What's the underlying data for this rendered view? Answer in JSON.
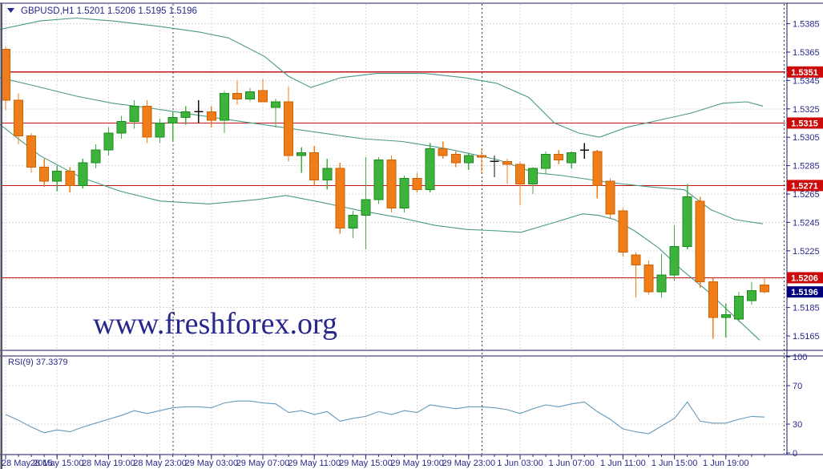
{
  "header": {
    "text": "GBPUSD,H1  1.5201 1.5206 1.5195 1.5196",
    "symbol": "GBPUSD",
    "timeframe": "H1"
  },
  "watermark": "www.freshforex.org",
  "colors": {
    "up": "#3cb43c",
    "up_stroke": "#1f8a1f",
    "down": "#f07d1a",
    "down_stroke": "#c66408",
    "band": "#4a9a88",
    "red_line": "#c41414",
    "badge_red": "#cc0a0a",
    "badge_blue": "#00007f",
    "axis_text": "#28288c",
    "grid": "#d8d8d8",
    "separator": "#3a3a3a",
    "border": "#1b1b66",
    "rsi_line": "#6699bb",
    "doji": "#111111",
    "watermark_green": "#33a053"
  },
  "price_axis": {
    "labels": [
      "1.5385",
      "1.5365",
      "1.5345",
      "1.5325",
      "1.5305",
      "1.5285",
      "1.5265",
      "1.5245",
      "1.5225",
      "1.5185",
      "1.5165"
    ],
    "badges": [
      {
        "value": "1.5351",
        "type": "line"
      },
      {
        "value": "1.5315",
        "type": "line"
      },
      {
        "value": "1.5271",
        "type": "line"
      },
      {
        "value": "1.5206",
        "type": "line"
      },
      {
        "value": "1.5196",
        "type": "bid"
      }
    ]
  },
  "rsi_axis_labels": [
    "100",
    "70",
    "30",
    "0"
  ],
  "time_axis_labels": [
    "28 May 2015",
    "28 May 15:00",
    "28 May 19:00",
    "28 May 23:00",
    "29 May 03:00",
    "29 May 07:00",
    "29 May 11:00",
    "29 May 15:00",
    "29 May 19:00",
    "29 May 23:00",
    "1 Jun 03:00",
    "1 Jun 07:00",
    "1 Jun 11:00",
    "1 Jun 15:00",
    "1 Jun 19:00"
  ],
  "chart_data": {
    "type": "candlestick",
    "symbol": "GBPUSD",
    "timeframe": "H1",
    "current_bar": {
      "open": 1.5201,
      "high": 1.5206,
      "low": 1.5195,
      "close": 1.5196
    },
    "horizontal_lines": [
      1.5351,
      1.5315,
      1.5271,
      1.5206
    ],
    "bid_price": 1.5196,
    "price_range": [
      1.5165,
      1.5385
    ],
    "candles": [
      [
        "28 May 11:00",
        1.5367,
        1.5369,
        1.5324,
        1.5331
      ],
      [
        "28 May 12:00",
        1.5331,
        1.5336,
        1.53,
        1.5306
      ],
      [
        "28 May 13:00",
        1.5306,
        1.5308,
        1.528,
        1.5284
      ],
      [
        "28 May 14:00",
        1.5284,
        1.529,
        1.527,
        1.5274
      ],
      [
        "28 May 15:00",
        1.5274,
        1.5285,
        1.5267,
        1.5281
      ],
      [
        "28 May 16:00",
        1.5281,
        1.5284,
        1.5266,
        1.5271
      ],
      [
        "28 May 17:00",
        1.5271,
        1.529,
        1.5269,
        1.5287
      ],
      [
        "28 May 18:00",
        1.5287,
        1.53,
        1.5283,
        1.5296
      ],
      [
        "28 May 19:00",
        1.5296,
        1.5312,
        1.5292,
        1.5308
      ],
      [
        "28 May 20:00",
        1.5308,
        1.532,
        1.5304,
        1.5316
      ],
      [
        "28 May 21:00",
        1.5316,
        1.5331,
        1.5311,
        1.5327
      ],
      [
        "28 May 22:00",
        1.5327,
        1.5331,
        1.5301,
        1.5305
      ],
      [
        "28 May 23:00",
        1.5305,
        1.5318,
        1.5301,
        1.5315
      ],
      [
        "29 May 00:00",
        1.5315,
        1.5323,
        1.5302,
        1.5319
      ],
      [
        "29 May 01:00",
        1.5319,
        1.5327,
        1.5314,
        1.5323
      ],
      [
        "29 May 02:00",
        1.5323,
        1.5331,
        1.5315,
        1.5323
      ],
      [
        "29 May 03:00",
        1.5323,
        1.5327,
        1.5312,
        1.5317
      ],
      [
        "29 May 04:00",
        1.5317,
        1.5338,
        1.5308,
        1.5336
      ],
      [
        "29 May 05:00",
        1.5336,
        1.5345,
        1.5328,
        1.5332
      ],
      [
        "29 May 06:00",
        1.5332,
        1.534,
        1.533,
        1.5337
      ],
      [
        "29 May 07:00",
        1.5338,
        1.5346,
        1.533,
        1.533
      ],
      [
        "29 May 08:00",
        1.5326,
        1.5332,
        1.5312,
        1.533
      ],
      [
        "29 May 09:00",
        1.533,
        1.5341,
        1.5288,
        1.5292
      ],
      [
        "29 May 10:00",
        1.5292,
        1.5298,
        1.528,
        1.5294
      ],
      [
        "29 May 11:00",
        1.5294,
        1.5299,
        1.5271,
        1.5275
      ],
      [
        "29 May 12:00",
        1.5275,
        1.529,
        1.5268,
        1.5283
      ],
      [
        "29 May 13:00",
        1.5283,
        1.5287,
        1.5237,
        1.5241
      ],
      [
        "29 May 14:00",
        1.5241,
        1.5253,
        1.5234,
        1.525
      ],
      [
        "29 May 15:00",
        1.525,
        1.5291,
        1.5226,
        1.5261
      ],
      [
        "29 May 16:00",
        1.5261,
        1.5291,
        1.5258,
        1.5289
      ],
      [
        "29 May 17:00",
        1.5289,
        1.5292,
        1.5252,
        1.5255
      ],
      [
        "29 May 18:00",
        1.5255,
        1.5278,
        1.5252,
        1.5276
      ],
      [
        "29 May 19:00",
        1.5276,
        1.528,
        1.5266,
        1.5268
      ],
      [
        "29 May 20:00",
        1.5268,
        1.5301,
        1.5266,
        1.5297
      ],
      [
        "29 May 21:00",
        1.5297,
        1.5302,
        1.529,
        1.5292
      ],
      [
        "29 May 22:00",
        1.5293,
        1.5295,
        1.5284,
        1.5287
      ],
      [
        "29 May 23:00",
        1.5287,
        1.5294,
        1.5282,
        1.5292
      ],
      [
        "1 Jun 00:00",
        1.5292,
        1.5297,
        1.5279,
        1.5291
      ],
      [
        "1 Jun 01:00",
        1.5288,
        1.5292,
        1.5277,
        1.5288
      ],
      [
        "1 Jun 02:00",
        1.5288,
        1.529,
        1.5272,
        1.5286
      ],
      [
        "1 Jun 03:00",
        1.5286,
        1.5288,
        1.5257,
        1.5272
      ],
      [
        "1 Jun 04:00",
        1.5272,
        1.5284,
        1.5265,
        1.5283
      ],
      [
        "1 Jun 05:00",
        1.5283,
        1.5295,
        1.5279,
        1.5293
      ],
      [
        "1 Jun 06:00",
        1.5293,
        1.5296,
        1.5286,
        1.5289
      ],
      [
        "1 Jun 07:00",
        1.5287,
        1.5295,
        1.5283,
        1.5294
      ],
      [
        "1 Jun 08:00",
        1.5296,
        1.5301,
        1.529,
        1.5296
      ],
      [
        "1 Jun 09:00",
        1.5295,
        1.5296,
        1.5262,
        1.5271
      ],
      [
        "1 Jun 10:00",
        1.5274,
        1.5276,
        1.5248,
        1.5251
      ],
      [
        "1 Jun 11:00",
        1.5253,
        1.5255,
        1.5221,
        1.5224
      ],
      [
        "1 Jun 12:00",
        1.5222,
        1.5224,
        1.5192,
        1.5215
      ],
      [
        "1 Jun 13:00",
        1.5215,
        1.5218,
        1.5194,
        1.5196
      ],
      [
        "1 Jun 14:00",
        1.5196,
        1.5223,
        1.5192,
        1.5208
      ],
      [
        "1 Jun 15:00",
        1.5208,
        1.5243,
        1.5204,
        1.5228
      ],
      [
        "1 Jun 16:00",
        1.5228,
        1.5272,
        1.5226,
        1.5263
      ],
      [
        "1 Jun 17:00",
        1.526,
        1.5263,
        1.5199,
        1.5203
      ],
      [
        "1 Jun 18:00",
        1.5203,
        1.5206,
        1.5163,
        1.5178
      ],
      [
        "1 Jun 19:00",
        1.5178,
        1.5188,
        1.5164,
        1.518
      ],
      [
        "1 Jun 20:00",
        1.5177,
        1.5196,
        1.5175,
        1.5193
      ],
      [
        "1 Jun 21:00",
        1.519,
        1.5203,
        1.5187,
        1.5197
      ],
      [
        "1 Jun 22:00",
        1.5201,
        1.5206,
        1.5195,
        1.5196
      ]
    ],
    "doji_black_indices": [
      15,
      38,
      45
    ],
    "bollinger": {
      "period_note": "Bollinger Bands overlay, teal",
      "upper": [
        [
          0,
          1.5381
        ],
        [
          50,
          1.5387
        ],
        [
          95,
          1.5389
        ],
        [
          140,
          1.5387
        ],
        [
          200,
          1.5383
        ],
        [
          250,
          1.5379
        ],
        [
          285,
          1.5375
        ],
        [
          330,
          1.5362
        ],
        [
          360,
          1.5348
        ],
        [
          388,
          1.534
        ],
        [
          425,
          1.5347
        ],
        [
          470,
          1.535
        ],
        [
          530,
          1.535
        ],
        [
          580,
          1.5347
        ],
        [
          620,
          1.5343
        ],
        [
          660,
          1.5333
        ],
        [
          692,
          1.5315
        ],
        [
          722,
          1.5308
        ],
        [
          748,
          1.5305
        ],
        [
          782,
          1.5312
        ],
        [
          822,
          1.5317
        ],
        [
          862,
          1.5322
        ],
        [
          902,
          1.5329
        ],
        [
          932,
          1.533
        ],
        [
          952,
          1.5327
        ]
      ],
      "middle": [
        [
          0,
          1.5347
        ],
        [
          45,
          1.5341
        ],
        [
          95,
          1.5334
        ],
        [
          140,
          1.5329
        ],
        [
          182,
          1.5326
        ],
        [
          242,
          1.5321
        ],
        [
          302,
          1.5316
        ],
        [
          352,
          1.5312
        ],
        [
          402,
          1.5308
        ],
        [
          452,
          1.5304
        ],
        [
          502,
          1.5302
        ],
        [
          557,
          1.5297
        ],
        [
          582,
          1.5294
        ],
        [
          622,
          1.5289
        ],
        [
          667,
          1.528
        ],
        [
          702,
          1.5278
        ],
        [
          762,
          1.5273
        ],
        [
          812,
          1.527
        ],
        [
          854,
          1.5268
        ],
        [
          887,
          1.5254
        ],
        [
          917,
          1.5247
        ],
        [
          952,
          1.5244
        ]
      ],
      "lower": [
        [
          0,
          1.5314
        ],
        [
          50,
          1.5292
        ],
        [
          100,
          1.5277
        ],
        [
          150,
          1.5267
        ],
        [
          200,
          1.526
        ],
        [
          260,
          1.5258
        ],
        [
          320,
          1.5261
        ],
        [
          357,
          1.5264
        ],
        [
          402,
          1.5259
        ],
        [
          452,
          1.5253
        ],
        [
          502,
          1.5248
        ],
        [
          542,
          1.5243
        ],
        [
          582,
          1.524
        ],
        [
          622,
          1.5239
        ],
        [
          650,
          1.5238
        ],
        [
          692,
          1.5245
        ],
        [
          727,
          1.5251
        ],
        [
          747,
          1.525
        ],
        [
          767,
          1.5247
        ],
        [
          792,
          1.5239
        ],
        [
          822,
          1.5227
        ],
        [
          852,
          1.5211
        ],
        [
          882,
          1.5197
        ],
        [
          912,
          1.5181
        ],
        [
          948,
          1.5162
        ]
      ]
    },
    "rsi": {
      "label": "RSI(9) 37.3379",
      "period": 9,
      "value": 37.3379,
      "scale": [
        0,
        100
      ],
      "levels": [
        30,
        70
      ],
      "values": [
        40,
        34,
        27,
        21,
        24,
        22,
        27,
        31,
        35,
        39,
        44,
        41,
        44,
        47,
        48,
        48,
        47,
        52,
        54,
        54,
        52,
        51,
        42,
        44,
        40,
        43,
        33,
        36,
        38,
        43,
        40,
        44,
        42,
        50,
        48,
        46,
        48,
        48,
        47,
        45,
        41,
        46,
        50,
        48,
        51,
        53,
        43,
        35,
        25,
        22,
        20,
        28,
        36,
        53,
        33,
        31,
        31,
        35,
        38,
        37.34
      ]
    }
  }
}
